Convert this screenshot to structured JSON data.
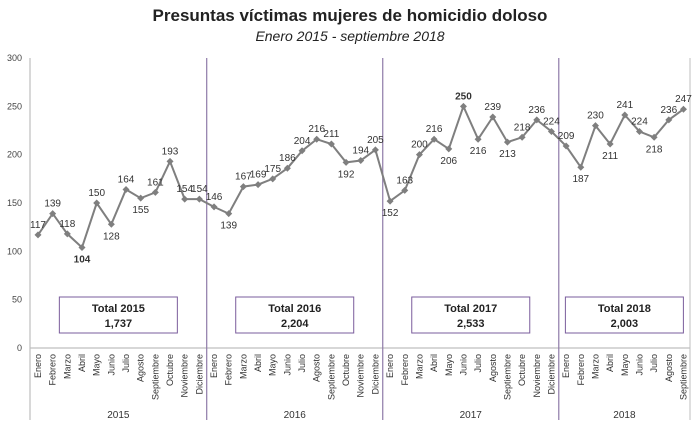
{
  "chart_data": {
    "type": "line",
    "title": "Presuntas víctimas mujeres de homicidio doloso",
    "subtitle": "Enero 2015 - septiembre 2018",
    "xlabel": "",
    "ylabel": "",
    "ylim": [
      0,
      300
    ],
    "yticks": [
      0,
      50,
      100,
      150,
      200,
      250,
      300
    ],
    "grid": false,
    "legend": "none",
    "years": [
      {
        "year": "2015",
        "months": [
          "Enero",
          "Febrero",
          "Marzo",
          "Abril",
          "Mayo",
          "Junio",
          "Julio",
          "Agosto",
          "Septiembre",
          "Octubre",
          "Noviembre",
          "Diciembre"
        ],
        "values": [
          117,
          139,
          118,
          104,
          150,
          128,
          164,
          155,
          161,
          193,
          154,
          154
        ],
        "total_label": "Total 2015",
        "total_value": "1,737"
      },
      {
        "year": "2016",
        "months": [
          "Enero",
          "Febrero",
          "Marzo",
          "Abril",
          "Mayo",
          "Junio",
          "Julio",
          "Agosto",
          "Septiembre",
          "Octubre",
          "Noviembre",
          "Diciembre"
        ],
        "values": [
          146,
          139,
          167,
          169,
          175,
          186,
          204,
          216,
          211,
          192,
          194,
          205
        ],
        "total_label": "Total 2016",
        "total_value": "2,204"
      },
      {
        "year": "2017",
        "months": [
          "Enero",
          "Febrero",
          "Marzo",
          "Abril",
          "Mayo",
          "Junio",
          "Julio",
          "Agosto",
          "Septiembre",
          "Octubre",
          "Noviembre",
          "Diciembre"
        ],
        "values": [
          152,
          163,
          200,
          216,
          206,
          250,
          216,
          239,
          213,
          218,
          236,
          224
        ],
        "total_label": "Total 2017",
        "total_value": "2,533"
      },
      {
        "year": "2018",
        "months": [
          "Enero",
          "Febrero",
          "Marzo",
          "Abril",
          "Mayo",
          "Junio",
          "Julio",
          "Agosto",
          "Septiembre"
        ],
        "values": [
          209,
          187,
          230,
          211,
          241,
          224,
          218,
          236,
          247
        ],
        "total_label": "Total 2018",
        "total_value": "2,003"
      }
    ],
    "highlights": [
      {
        "label": "min",
        "year": "2015",
        "month": "Abril",
        "value": 104,
        "color": "#2ea84f"
      },
      {
        "label": "max",
        "year": "2017",
        "month": "Junio",
        "value": 250,
        "color": "#e0211d"
      }
    ],
    "colors": {
      "line": "#7f7f7f",
      "marker": "#7f7f7f",
      "divider": "#8e7aa8",
      "box_border": "#7a5c9c",
      "axis": "#bfbfbf"
    }
  }
}
